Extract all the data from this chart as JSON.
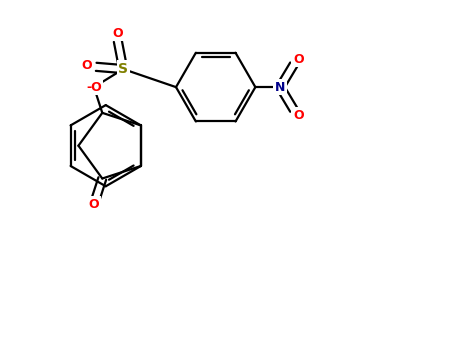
{
  "bg": "#ffffff",
  "bond_color": "#000000",
  "lw": 1.6,
  "fs": 8.5,
  "colors": {
    "O": "#ff0000",
    "S": "#808000",
    "N": "#00008b",
    "C": "#000000"
  },
  "fig_w": 4.55,
  "fig_h": 3.5,
  "dpi": 100,
  "xlim": [
    0,
    10
  ],
  "ylim": [
    0,
    7.7
  ]
}
